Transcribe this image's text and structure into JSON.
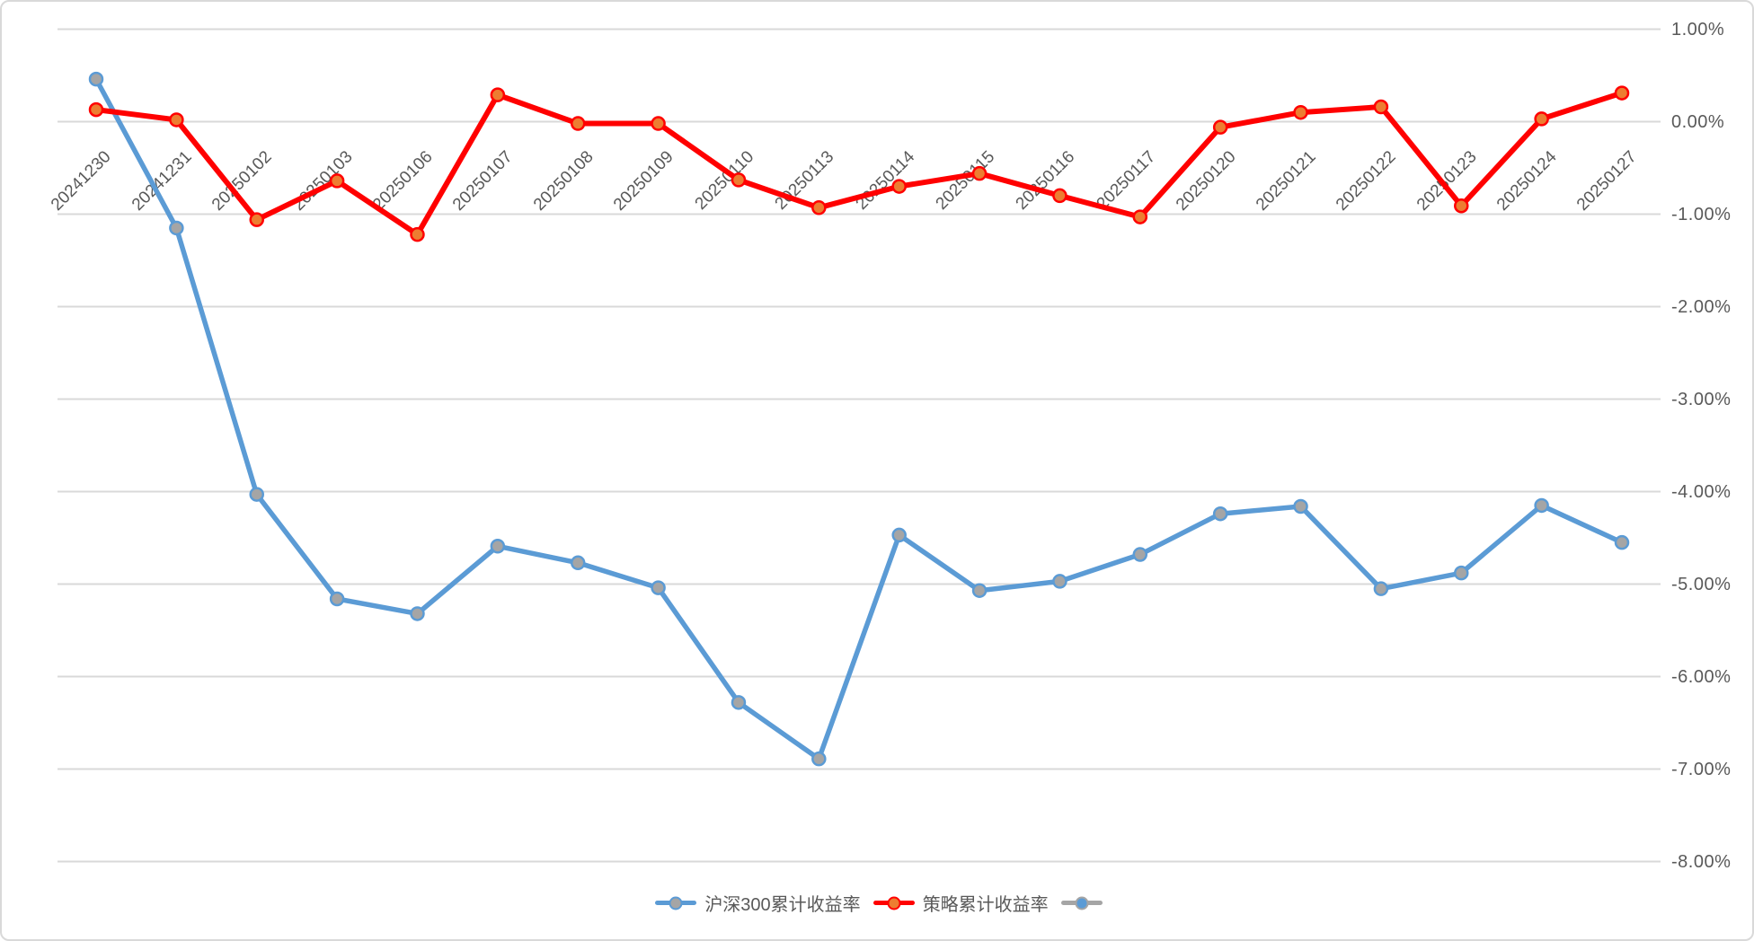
{
  "chart_data": {
    "type": "line",
    "categories": [
      "20241230",
      "20241231",
      "20250102",
      "20250103",
      "20250106",
      "20250107",
      "20250108",
      "20250109",
      "20250110",
      "20250113",
      "20250114",
      "20250115",
      "20250116",
      "20250117",
      "20250120",
      "20250121",
      "20250122",
      "20250123",
      "20250124",
      "20250127"
    ],
    "series": [
      {
        "name": "沪深300累计收益率",
        "line_color": "#5B9BD5",
        "marker_fill": "#A5A5A5",
        "marker_stroke": "#5B9BD5",
        "values": [
          0.46,
          -1.15,
          -4.03,
          -5.16,
          -5.32,
          -4.59,
          -4.77,
          -5.04,
          -6.28,
          -6.89,
          -4.47,
          -5.07,
          -4.97,
          -4.68,
          -4.24,
          -4.16,
          -5.05,
          -4.88,
          -4.15,
          -4.55
        ]
      },
      {
        "name": "策略累计收益率",
        "line_color": "#FF0000",
        "marker_fill": "#ED7D31",
        "marker_stroke": "#FF0000",
        "values": [
          0.13,
          0.02,
          -1.06,
          -0.64,
          -1.22,
          0.29,
          -0.02,
          -0.02,
          -0.63,
          -0.93,
          -0.7,
          -0.56,
          -0.8,
          -1.03,
          -0.06,
          0.1,
          0.16,
          -0.91,
          0.03,
          0.31
        ]
      },
      {
        "name": "",
        "line_color": "#A5A5A5",
        "marker_fill": "#5B9BD5",
        "marker_stroke": "#A5A5A5",
        "values": []
      }
    ],
    "title": "",
    "xlabel": "",
    "ylabel": "",
    "y_axis": {
      "tick_labels": [
        "1.00%",
        "0.00%",
        "-1.00%",
        "-2.00%",
        "-3.00%",
        "-4.00%",
        "-5.00%",
        "-6.00%",
        "-7.00%",
        "-8.00%"
      ],
      "tick_values": [
        1,
        0,
        -1,
        -2,
        -3,
        -4,
        -5,
        -6,
        -7,
        -8
      ],
      "max": 1,
      "min": -8,
      "step": 1,
      "side": "right"
    },
    "grid": true,
    "legend_position": "bottom-center",
    "x_label_rotation_deg": 45,
    "colors": {
      "grid": "#D9D9D9",
      "axis_text": "#595959",
      "border": "#D9D9D9",
      "background": "#FFFFFF"
    }
  }
}
